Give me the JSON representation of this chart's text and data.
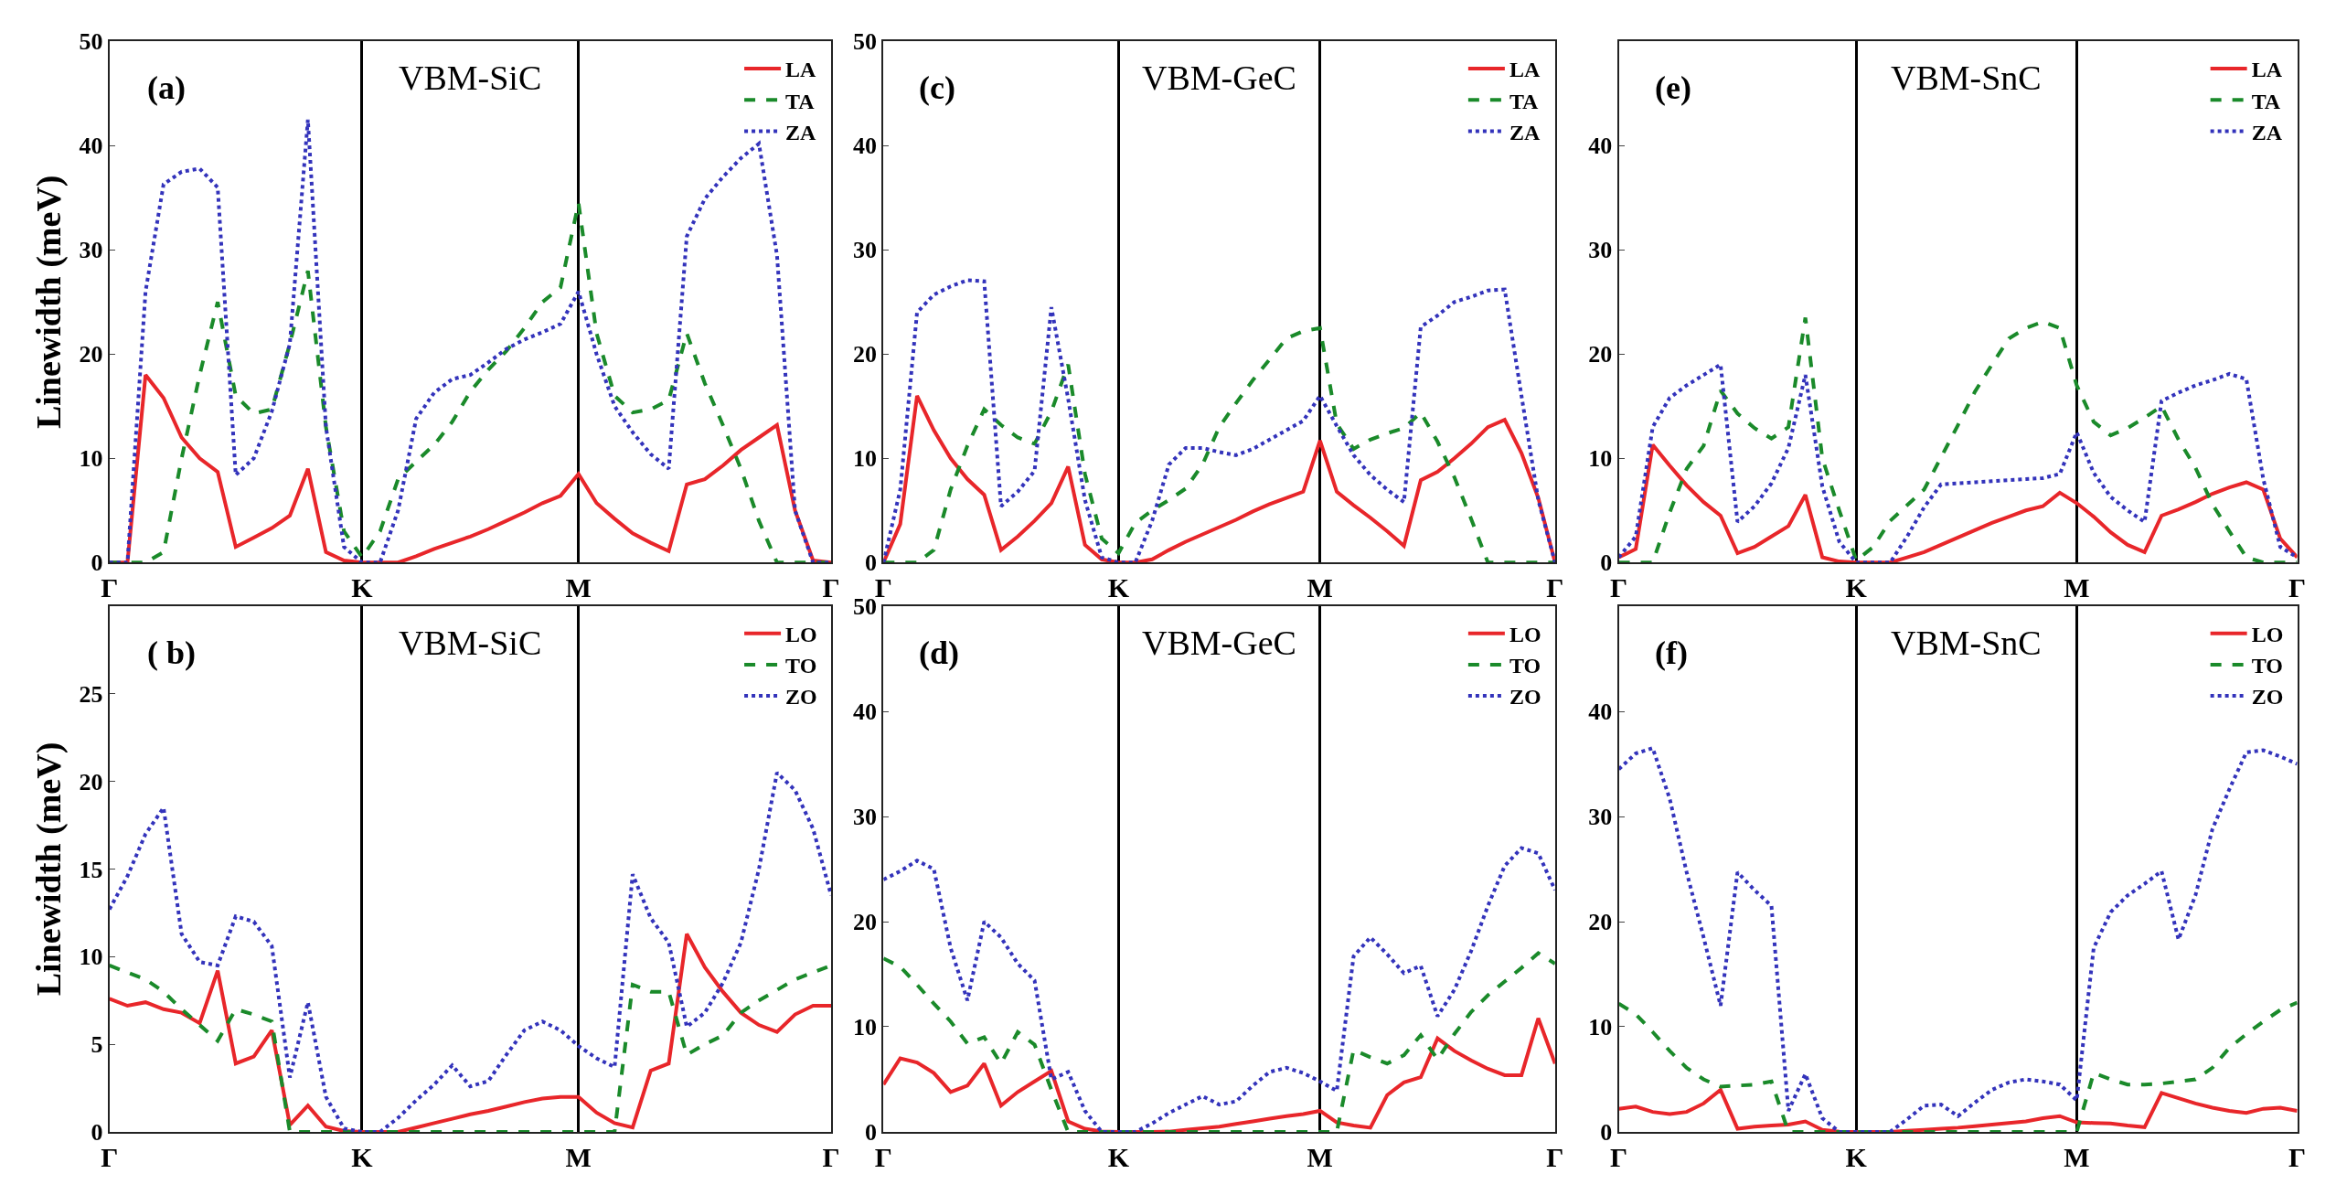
{
  "chart_data": [
    {
      "type": "line",
      "ylabel": "Linewidth (meV)",
      "annotations": [
        "(a)",
        "VBM-SiC"
      ],
      "ylim": [
        0,
        50
      ],
      "yticks": [
        0,
        10,
        20,
        30,
        40,
        50
      ],
      "categories": [
        "Γ",
        null,
        null,
        null,
        null,
        null,
        null,
        null,
        null,
        null,
        null,
        null,
        null,
        null,
        "K",
        null,
        null,
        null,
        null,
        null,
        null,
        null,
        null,
        null,
        null,
        null,
        "M",
        null,
        null,
        null,
        null,
        null,
        null,
        null,
        null,
        null,
        null,
        null,
        null,
        null,
        "Γ"
      ],
      "grid": "x",
      "legend": "top right",
      "series": [
        {
          "name": "LA",
          "color": "#e8262a",
          "line_style": "solid",
          "values": [
            0,
            0,
            18,
            15.8,
            12,
            10,
            8.7,
            1.5,
            2.4,
            3.3,
            4.5,
            9,
            1,
            0.2,
            0,
            0,
            0,
            0.6,
            1.3,
            1.9,
            2.5,
            3.2,
            4,
            4.8,
            5.7,
            6.4,
            8.5,
            5.7,
            4.2,
            2.8,
            1.9,
            1.1,
            7.5,
            8,
            9.3,
            10.8,
            12,
            13.2,
            5,
            0.2,
            0
          ]
        },
        {
          "name": "TA",
          "color": "#1a8a2a",
          "line_style": "dashed",
          "values": [
            0,
            0,
            0,
            1,
            10,
            18,
            25,
            16,
            14.3,
            14.7,
            21,
            28,
            13,
            3,
            0.5,
            3,
            8,
            9.7,
            11.3,
            13.5,
            16.4,
            18.5,
            20.3,
            22.5,
            25,
            26.4,
            34.5,
            22,
            16,
            14.4,
            14.7,
            15.6,
            22,
            17.2,
            13.2,
            9,
            4,
            0,
            0,
            0,
            0
          ]
        },
        {
          "name": "ZA",
          "color": "#3333bb",
          "line_style": "dotted",
          "values": [
            0,
            0,
            26,
            36.3,
            37.5,
            37.8,
            36,
            8.4,
            10,
            14.5,
            21,
            42.5,
            13,
            1.5,
            0,
            0,
            5,
            13.8,
            16.3,
            17.6,
            18,
            19.2,
            20.5,
            21.4,
            22.1,
            22.9,
            26,
            20,
            15,
            12.5,
            10.4,
            9,
            31.3,
            34.9,
            37,
            38.8,
            40.2,
            29.5,
            5,
            0,
            0
          ]
        }
      ]
    },
    {
      "type": "line",
      "annotations": [
        "(c)",
        "VBM-GeC"
      ],
      "ylim": [
        0,
        50
      ],
      "yticks": [
        0,
        10,
        20,
        30,
        40,
        50
      ],
      "categories": [
        "Γ",
        null,
        null,
        null,
        null,
        null,
        null,
        null,
        null,
        null,
        null,
        null,
        null,
        null,
        "K",
        null,
        null,
        null,
        null,
        null,
        null,
        null,
        null,
        null,
        null,
        null,
        "M",
        null,
        null,
        null,
        null,
        null,
        null,
        null,
        null,
        null,
        null,
        null,
        null,
        null,
        "Γ"
      ],
      "grid": "x",
      "legend": "top right",
      "series": [
        {
          "name": "LA",
          "color": "#e8262a",
          "line_style": "solid",
          "values": [
            0,
            3.7,
            16,
            12.7,
            10,
            8,
            6.5,
            1.2,
            2.5,
            4,
            5.7,
            9.2,
            1.7,
            0.3,
            0,
            0,
            0.3,
            1.2,
            2,
            2.7,
            3.4,
            4.1,
            4.9,
            5.6,
            6.2,
            6.8,
            11.7,
            6.8,
            5.5,
            4.3,
            3,
            1.6,
            7.9,
            8.7,
            10,
            11.4,
            13,
            13.7,
            10.5,
            6.2,
            0
          ]
        },
        {
          "name": "TA",
          "color": "#1a8a2a",
          "line_style": "dashed",
          "values": [
            0,
            0,
            0,
            1.2,
            7,
            11.2,
            14.7,
            13.2,
            12,
            11.4,
            14.5,
            19,
            8.5,
            2.3,
            0.9,
            3.8,
            5,
            6,
            7.1,
            9.4,
            13,
            15.3,
            17.5,
            19.5,
            21.5,
            22.2,
            22.5,
            13.3,
            10.9,
            11.8,
            12.4,
            12.9,
            14.4,
            11.6,
            8.2,
            4.2,
            0,
            0,
            0,
            0,
            0
          ]
        },
        {
          "name": "ZA",
          "color": "#3333bb",
          "line_style": "dotted",
          "values": [
            0,
            7,
            24,
            25.7,
            26.5,
            27.1,
            27,
            5.4,
            6.8,
            8.8,
            24.5,
            15.7,
            6,
            0.5,
            0,
            0,
            4,
            9.4,
            11,
            11,
            10.6,
            10.3,
            10.9,
            11.8,
            12.7,
            13.6,
            16,
            13.1,
            10.3,
            8.4,
            7,
            5.8,
            22.6,
            23.7,
            25,
            25.5,
            26.1,
            26.2,
            16,
            6,
            0
          ]
        }
      ]
    },
    {
      "type": "line",
      "annotations": [
        "(e)",
        "VBM-SnC"
      ],
      "ylim": [
        0,
        50
      ],
      "yticks": [
        0,
        10,
        20,
        30,
        40
      ],
      "categories": [
        "Γ",
        null,
        null,
        null,
        null,
        null,
        null,
        null,
        null,
        null,
        null,
        null,
        null,
        null,
        "K",
        null,
        null,
        null,
        null,
        null,
        null,
        null,
        null,
        null,
        null,
        null,
        null,
        "M",
        null,
        null,
        null,
        null,
        null,
        null,
        null,
        null,
        null,
        null,
        null,
        null,
        "Γ"
      ],
      "grid": "x",
      "legend": "top right",
      "series": [
        {
          "name": "LA",
          "color": "#e8262a",
          "line_style": "solid",
          "values": [
            0.5,
            1.3,
            11.3,
            9.3,
            7.4,
            5.8,
            4.5,
            0.9,
            1.5,
            2.5,
            3.5,
            6.5,
            0.5,
            0.1,
            0,
            0,
            0,
            0.5,
            1,
            1.7,
            2.4,
            3.1,
            3.8,
            4.4,
            5,
            5.4,
            6.7,
            5.7,
            4.4,
            2.9,
            1.7,
            1,
            4.5,
            5.1,
            5.8,
            6.6,
            7.2,
            7.7,
            7,
            2.3,
            0.5
          ]
        },
        {
          "name": "TA",
          "color": "#1a8a2a",
          "line_style": "dashed",
          "values": [
            0,
            0,
            0,
            4.8,
            9,
            11.2,
            16.5,
            14.3,
            12.9,
            11.9,
            13,
            23.5,
            10,
            5,
            0.2,
            1.5,
            4,
            5.5,
            7,
            10.1,
            13.2,
            16.4,
            19,
            21.5,
            22.5,
            23.1,
            22.5,
            17,
            13.5,
            12.2,
            12.9,
            13.9,
            15,
            11.8,
            9.1,
            5.6,
            3,
            0.5,
            0,
            0,
            0
          ]
        },
        {
          "name": "ZA",
          "color": "#3333bb",
          "line_style": "dotted",
          "values": [
            0.5,
            2.5,
            13,
            15.8,
            17,
            18,
            19,
            3.9,
            5.4,
            7.6,
            11,
            18,
            7.3,
            2,
            0,
            0,
            0,
            2.5,
            5.3,
            7.5,
            7.6,
            7.7,
            7.8,
            7.9,
            8,
            8.1,
            8.5,
            12.5,
            8.6,
            6.3,
            5,
            3.9,
            15.5,
            16.3,
            17,
            17.5,
            18.1,
            17.6,
            8,
            1.5,
            0.5
          ]
        }
      ]
    },
    {
      "type": "line",
      "ylabel": "Linewidth (meV)",
      "annotations": [
        "( b)",
        "VBM-SiC"
      ],
      "ylim": [
        0,
        30
      ],
      "yticks": [
        0,
        5,
        10,
        15,
        20,
        25
      ],
      "categories": [
        "Γ",
        null,
        null,
        null,
        null,
        null,
        null,
        null,
        null,
        null,
        null,
        null,
        null,
        null,
        "K",
        null,
        null,
        null,
        null,
        null,
        null,
        null,
        null,
        null,
        null,
        null,
        "M",
        null,
        null,
        null,
        null,
        null,
        null,
        null,
        null,
        null,
        null,
        null,
        null,
        null,
        "Γ"
      ],
      "grid": "x",
      "legend": "top right",
      "series": [
        {
          "name": "LO",
          "color": "#e8262a",
          "line_style": "solid",
          "values": [
            7.6,
            7.2,
            7.4,
            7,
            6.8,
            6.2,
            9.2,
            3.9,
            4.3,
            5.8,
            0.4,
            1.5,
            0.3,
            0.05,
            0,
            0,
            0,
            0.25,
            0.5,
            0.75,
            1,
            1.2,
            1.45,
            1.7,
            1.9,
            2,
            2,
            1.1,
            0.5,
            0.25,
            3.5,
            3.9,
            11.3,
            9.4,
            8,
            6.8,
            6.1,
            5.7,
            6.7,
            7.2,
            7.2
          ]
        },
        {
          "name": "TO",
          "color": "#1a8a2a",
          "line_style": "dashed",
          "values": [
            9.5,
            9.1,
            8.7,
            8,
            7,
            6.1,
            5.2,
            7,
            6.7,
            6.3,
            0,
            0,
            0,
            0,
            0,
            0,
            0,
            0,
            0,
            0,
            0,
            0,
            0,
            0,
            0,
            0,
            0,
            0,
            0,
            8.4,
            8,
            8,
            4.4,
            5,
            5.5,
            6.8,
            7.5,
            8.1,
            8.7,
            9.1,
            9.5
          ]
        },
        {
          "name": "ZO",
          "color": "#3333bb",
          "line_style": "dotted",
          "values": [
            12.7,
            14.6,
            17,
            18.5,
            11.3,
            9.7,
            9.5,
            12.3,
            12,
            10.6,
            3.1,
            7.4,
            2,
            0.2,
            0,
            0,
            0.8,
            1.8,
            2.7,
            3.8,
            2.6,
            2.9,
            4.4,
            5.8,
            6.3,
            5.8,
            4.9,
            4.2,
            3.7,
            14.7,
            12.2,
            10.8,
            6,
            6.8,
            8.5,
            10.8,
            15,
            20.5,
            19.5,
            17.3,
            13.5
          ]
        }
      ]
    },
    {
      "type": "line",
      "annotations": [
        "(d)",
        "VBM-GeC"
      ],
      "ylim": [
        0,
        50
      ],
      "yticks": [
        0,
        10,
        20,
        30,
        40,
        50
      ],
      "categories": [
        "Γ",
        null,
        null,
        null,
        null,
        null,
        null,
        null,
        null,
        null,
        null,
        null,
        null,
        null,
        "K",
        null,
        null,
        null,
        null,
        null,
        null,
        null,
        null,
        null,
        null,
        null,
        "M",
        null,
        null,
        null,
        null,
        null,
        null,
        null,
        null,
        null,
        null,
        null,
        null,
        null,
        "Γ"
      ],
      "grid": "x",
      "legend": "top right",
      "series": [
        {
          "name": "LO",
          "color": "#e8262a",
          "line_style": "solid",
          "values": [
            4.5,
            7,
            6.6,
            5.6,
            3.8,
            4.4,
            6.5,
            2.5,
            3.8,
            4.8,
            5.8,
            1,
            0.3,
            0.05,
            0,
            0,
            0,
            0.03,
            0.2,
            0.35,
            0.5,
            0.75,
            1,
            1.25,
            1.5,
            1.7,
            2,
            0.9,
            0.6,
            0.4,
            3.5,
            4.7,
            5.2,
            8.9,
            7.7,
            6.8,
            6,
            5.4,
            5.4,
            10.8,
            6.5
          ]
        },
        {
          "name": "TO",
          "color": "#1a8a2a",
          "line_style": "dashed",
          "values": [
            16.5,
            15.7,
            14,
            12.2,
            10.5,
            8.4,
            9,
            6.5,
            9.5,
            8.3,
            4,
            0,
            0,
            0,
            0,
            0,
            0,
            0,
            0,
            0,
            0,
            0,
            0,
            0,
            0,
            0,
            0,
            0,
            7.8,
            7.1,
            6.5,
            7.3,
            9.2,
            6.9,
            9.3,
            11.4,
            13,
            14.3,
            15.6,
            17,
            16
          ]
        },
        {
          "name": "ZO",
          "color": "#3333bb",
          "line_style": "dotted",
          "values": [
            24,
            24.8,
            25.8,
            25,
            17.5,
            12.5,
            20,
            18.5,
            16,
            14.4,
            5,
            5.7,
            2,
            0,
            0,
            0,
            0.8,
            1.8,
            2.6,
            3.4,
            2.6,
            2.9,
            4.4,
            5.7,
            6.1,
            5.6,
            4.8,
            3.9,
            16.7,
            18.5,
            16.9,
            15.1,
            15.8,
            11,
            13.5,
            17.2,
            21.5,
            25.3,
            27,
            26.5,
            23
          ]
        }
      ]
    },
    {
      "type": "line",
      "annotations": [
        "(f)",
        "VBM-SnC"
      ],
      "ylim": [
        0,
        50
      ],
      "yticks": [
        0,
        10,
        20,
        30,
        40
      ],
      "categories": [
        "Γ",
        null,
        null,
        null,
        null,
        null,
        null,
        null,
        null,
        null,
        null,
        null,
        null,
        null,
        "K",
        null,
        null,
        null,
        null,
        null,
        null,
        null,
        null,
        null,
        null,
        null,
        null,
        "M",
        null,
        null,
        null,
        null,
        null,
        null,
        null,
        null,
        null,
        null,
        null,
        null,
        "Γ"
      ],
      "grid": "x",
      "legend": "top right",
      "series": [
        {
          "name": "LO",
          "color": "#e8262a",
          "line_style": "solid",
          "values": [
            2.2,
            2.4,
            1.9,
            1.7,
            1.9,
            2.7,
            4,
            0.3,
            0.5,
            0.6,
            0.7,
            1,
            0.2,
            0.02,
            0,
            0,
            0,
            0.1,
            0.2,
            0.3,
            0.4,
            0.55,
            0.7,
            0.85,
            1,
            1.3,
            1.5,
            0.9,
            0.85,
            0.8,
            0.6,
            0.45,
            3.7,
            3.2,
            2.7,
            2.3,
            2,
            1.8,
            2.2,
            2.3,
            2
          ]
        },
        {
          "name": "TO",
          "color": "#1a8a2a",
          "line_style": "dashed",
          "values": [
            12.2,
            11.2,
            9.5,
            7.7,
            6.1,
            5,
            4.3,
            4.4,
            4.5,
            4.8,
            0,
            0,
            0,
            0,
            0,
            0,
            0,
            0,
            0,
            0,
            0,
            0,
            0,
            0,
            0,
            0,
            0,
            0,
            5.6,
            5,
            4.5,
            4.5,
            4.6,
            4.8,
            5,
            6.1,
            8,
            9.3,
            10.5,
            11.6,
            12.3
          ]
        },
        {
          "name": "ZO",
          "color": "#3333bb",
          "line_style": "dotted",
          "values": [
            34.5,
            36,
            36.5,
            31.7,
            24.7,
            18.5,
            12,
            24.7,
            23,
            21.5,
            2,
            5.5,
            1.3,
            0,
            0,
            0,
            0,
            1.2,
            2.5,
            2.6,
            1.5,
            2.8,
            4,
            4.7,
            5,
            4.8,
            4.5,
            3,
            17.5,
            20.9,
            22.5,
            23.6,
            24.8,
            18.3,
            22.5,
            28.8,
            32.6,
            36.1,
            36.3,
            35.7,
            35
          ]
        }
      ]
    }
  ]
}
